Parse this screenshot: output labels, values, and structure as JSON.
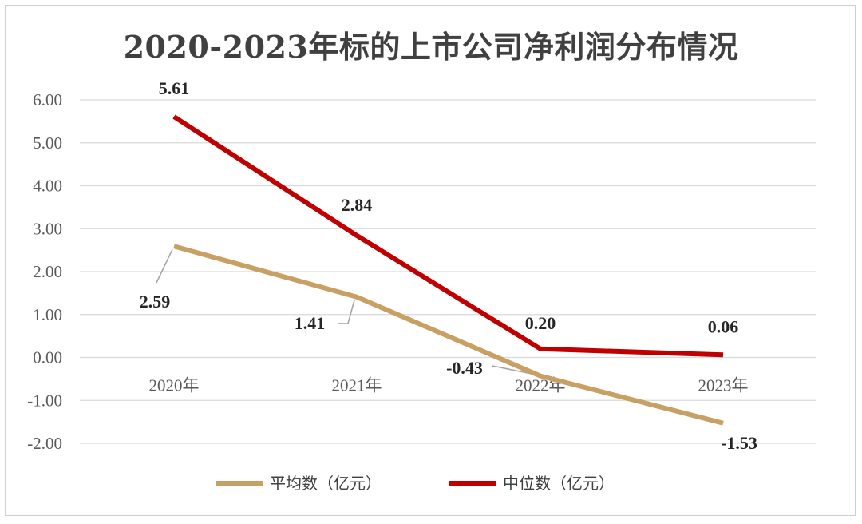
{
  "chart_data": {
    "type": "line",
    "title": "2020-2023年标的上市公司净利润分布情况",
    "categories": [
      "2020年",
      "2021年",
      "2022年",
      "2023年"
    ],
    "series": [
      {
        "name": "平均数（亿元）",
        "values": [
          2.59,
          1.41,
          -0.43,
          -1.53
        ],
        "color": "#C9A063"
      },
      {
        "name": "中位数（亿元）",
        "values": [
          5.61,
          2.84,
          0.2,
          0.06
        ],
        "color": "#C00000"
      }
    ],
    "y_ticks": [
      "6.00",
      "5.00",
      "4.00",
      "3.00",
      "2.00",
      "1.00",
      "0.00",
      "-1.00",
      "-2.00"
    ],
    "ylim": [
      -2,
      6
    ],
    "data_labels": {
      "平均数（亿元）": [
        "2.59",
        "1.41",
        "-0.43",
        "-1.53"
      ],
      "中位数（亿元）": [
        "5.61",
        "2.84",
        "0.20",
        "0.06"
      ]
    },
    "grid": true,
    "legend": "bottom"
  }
}
